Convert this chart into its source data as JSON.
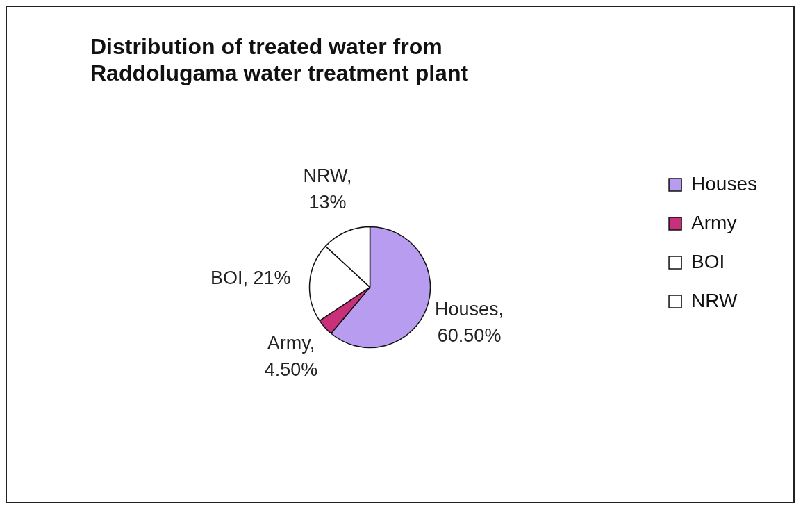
{
  "chart_data": {
    "type": "pie",
    "title": "Distribution of treated water from Raddolugama water treatment plant",
    "categories": [
      "Houses",
      "Army",
      "BOI",
      "NRW"
    ],
    "values": [
      60.5,
      4.5,
      21,
      13
    ],
    "value_labels": [
      "Houses, 60.50%",
      "Army, 4.50%",
      "BOI, 21%",
      "NRW, 13%"
    ],
    "colors": [
      "#b89cf0",
      "#c8307a",
      "#ffffff",
      "#ffffff"
    ],
    "legend": "right"
  }
}
